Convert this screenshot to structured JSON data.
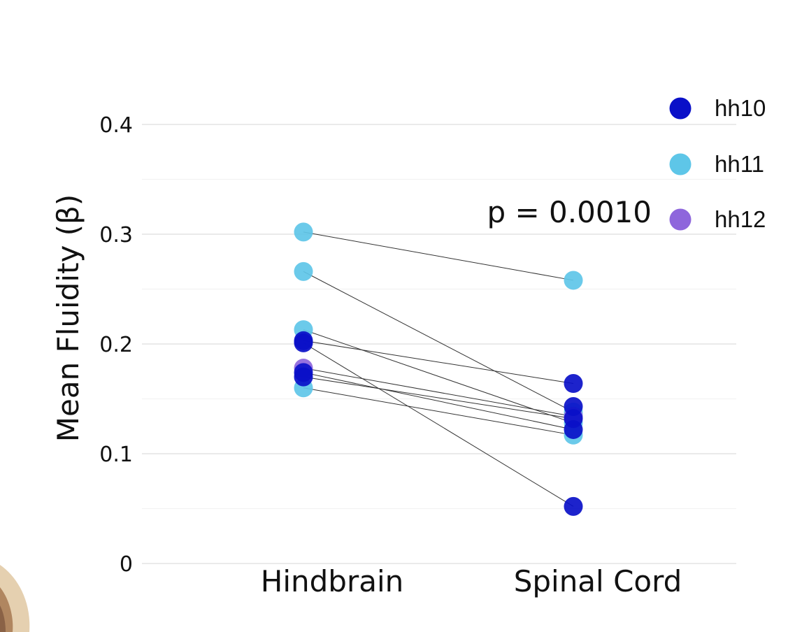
{
  "chart_data": {
    "type": "scatter",
    "subtype": "paired-dot",
    "title": "",
    "xlabel": "",
    "ylabel": "Mean  Fluidity (β)",
    "ylim": [
      0,
      0.4
    ],
    "yticks": [
      0,
      0.1,
      0.2,
      0.3,
      0.4
    ],
    "ytick_labels": [
      "0",
      "0.1",
      "0.2",
      "0.3",
      "0.4"
    ],
    "grid": true,
    "categories": [
      "Hindbrain",
      "Spinal Cord"
    ],
    "annotation": "p = 0.0010",
    "legend_position": "top-right",
    "series": [
      {
        "name": "hh10",
        "color": "#0a10c8"
      },
      {
        "name": "hh11",
        "color": "#5ec6e8"
      },
      {
        "name": "hh12",
        "color": "#8e66dc"
      }
    ],
    "pairs": [
      {
        "series": "hh11",
        "values": [
          0.302,
          0.258
        ]
      },
      {
        "series": "hh11",
        "values": [
          0.266,
          0.138
        ]
      },
      {
        "series": "hh11",
        "values": [
          0.213,
          0.128
        ]
      },
      {
        "series": "hh10",
        "values": [
          0.203,
          0.164
        ]
      },
      {
        "series": "hh10",
        "values": [
          0.201,
          0.052
        ]
      },
      {
        "series": "hh12",
        "values": [
          0.178,
          0.134
        ]
      },
      {
        "series": "hh10",
        "values": [
          0.174,
          0.122
        ]
      },
      {
        "series": "hh10",
        "values": [
          0.17,
          0.132
        ]
      },
      {
        "series": "hh11",
        "values": [
          0.16,
          0.117
        ]
      }
    ],
    "extra_points": [
      {
        "series": "hh10",
        "category": "Spinal Cord",
        "value": 0.143
      },
      {
        "series": "hh11",
        "category": "Spinal Cord",
        "value": 0.135
      }
    ]
  }
}
